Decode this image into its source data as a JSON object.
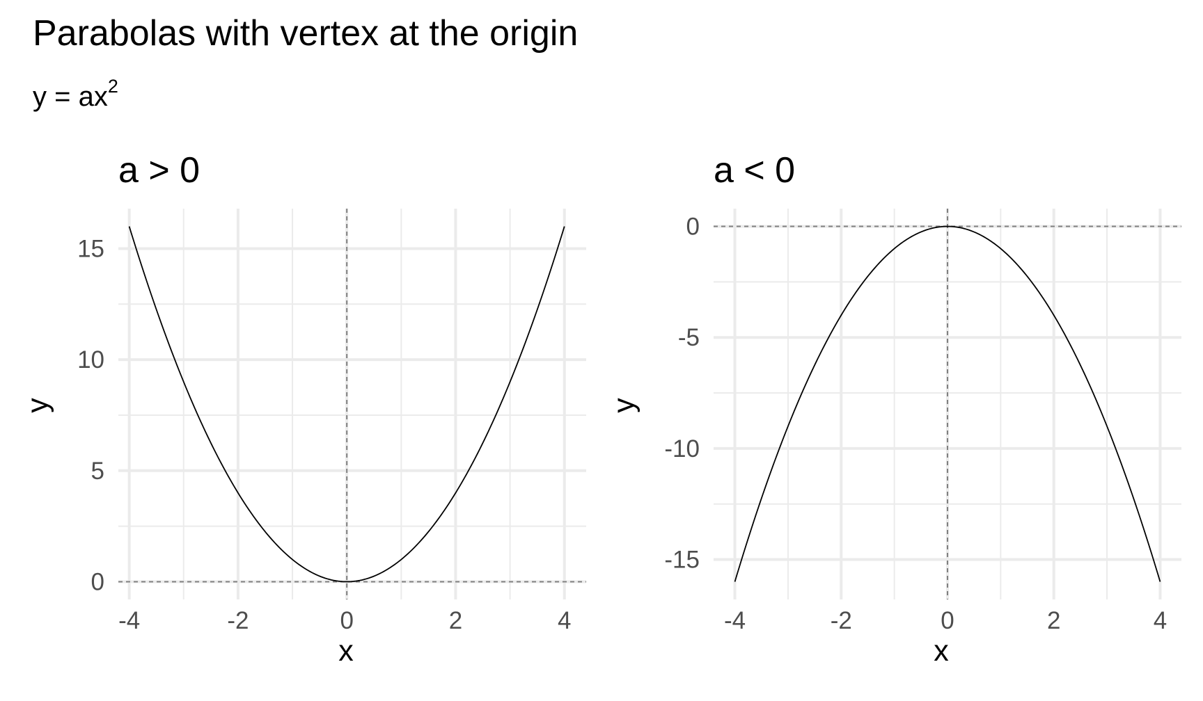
{
  "title": "Parabolas with vertex at the origin",
  "subtitle_base": "y = ax",
  "subtitle_exponent": "2",
  "chart_data": [
    {
      "type": "line",
      "title": "a > 0",
      "xlabel": "x",
      "ylabel": "y",
      "xlim": [
        -4.2,
        4.4
      ],
      "ylim": [
        -0.8,
        16.8
      ],
      "x_ticks": [
        -4,
        -2,
        0,
        2,
        4
      ],
      "x_minor_ticks": [
        -3,
        -1,
        1,
        3
      ],
      "y_ticks": [
        0,
        5,
        10,
        15
      ],
      "y_minor_ticks": [
        2.5,
        7.5,
        12.5
      ],
      "reference_lines": {
        "x": 0,
        "y": 0
      },
      "grid": true,
      "curve": "y = x^2",
      "coefficient": 1,
      "series": [
        {
          "x": [
            -4,
            -3.5,
            -3,
            -2.5,
            -2,
            -1.5,
            -1,
            -0.5,
            0,
            0.5,
            1,
            1.5,
            2,
            2.5,
            3,
            3.5,
            4
          ],
          "values": [
            16,
            12.25,
            9,
            6.25,
            4,
            2.25,
            1,
            0.25,
            0,
            0.25,
            1,
            2.25,
            4,
            6.25,
            9,
            12.25,
            16
          ]
        }
      ]
    },
    {
      "type": "line",
      "title": "a < 0",
      "xlabel": "x",
      "ylabel": "y",
      "xlim": [
        -4.4,
        4.4
      ],
      "ylim": [
        -16.8,
        0.8
      ],
      "x_ticks": [
        -4,
        -2,
        0,
        2,
        4
      ],
      "x_minor_ticks": [
        -3,
        -1,
        1,
        3
      ],
      "y_ticks": [
        -15,
        -10,
        -5,
        0
      ],
      "y_minor_ticks": [
        -12.5,
        -7.5,
        -2.5
      ],
      "reference_lines": {
        "x": 0,
        "y": 0
      },
      "grid": true,
      "curve": "y = -x^2",
      "coefficient": -1,
      "series": [
        {
          "x": [
            -4,
            -3.5,
            -3,
            -2.5,
            -2,
            -1.5,
            -1,
            -0.5,
            0,
            0.5,
            1,
            1.5,
            2,
            2.5,
            3,
            3.5,
            4
          ],
          "values": [
            -16,
            -12.25,
            -9,
            -6.25,
            -4,
            -2.25,
            -1,
            -0.25,
            0,
            -0.25,
            -1,
            -2.25,
            -4,
            -6.25,
            -9,
            -12.25,
            -16
          ]
        }
      ]
    }
  ],
  "colors": {
    "grid": "#ebebeb",
    "reference": "#808080",
    "curve": "#000000",
    "tick_text": "#4d4d4d"
  }
}
